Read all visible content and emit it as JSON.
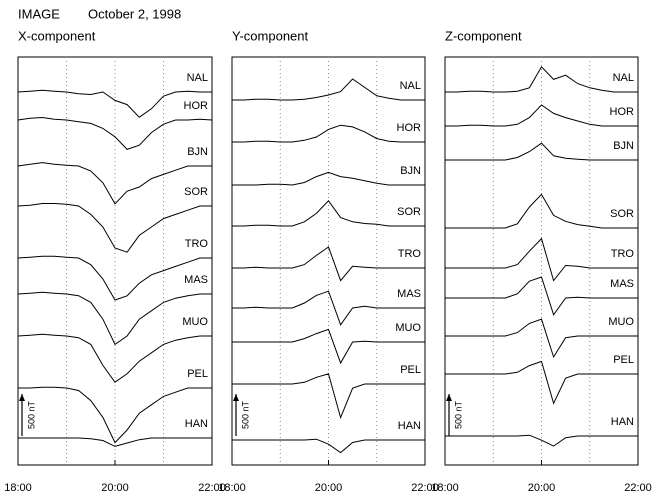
{
  "header": {
    "title": "IMAGE",
    "date": "October 2, 1998"
  },
  "chart_data": [
    {
      "type": "line",
      "title": "X-component",
      "x": [
        18,
        18.25,
        18.5,
        18.75,
        19,
        19.25,
        19.5,
        19.75,
        20,
        20.25,
        20.5,
        20.75,
        21,
        21.25,
        21.5,
        21.75,
        22
      ],
      "xlim": [
        18,
        22
      ],
      "xticks": [
        {
          "value": 18,
          "label": "18:00"
        },
        {
          "value": 20,
          "label": "20:00"
        },
        {
          "value": 22,
          "label": "22:00"
        }
      ],
      "xgrid": [
        19,
        20,
        21
      ],
      "scale_bar": {
        "value": 500,
        "label": "500 nT"
      },
      "series": [
        {
          "name": "NAL",
          "color": "#000000",
          "values": [
            0,
            10,
            20,
            10,
            0,
            -20,
            -30,
            0,
            -100,
            -150,
            -300,
            -200,
            -50,
            0,
            10,
            0,
            0
          ]
        },
        {
          "name": "HOR",
          "color": "#000000",
          "values": [
            0,
            20,
            30,
            10,
            0,
            -20,
            -40,
            -100,
            -200,
            -350,
            -300,
            -150,
            -50,
            0,
            0,
            10,
            0
          ]
        },
        {
          "name": "BJN",
          "color": "#000000",
          "values": [
            0,
            20,
            40,
            20,
            10,
            0,
            -60,
            -200,
            -450,
            -300,
            -250,
            -150,
            -100,
            -50,
            0,
            0,
            0
          ]
        },
        {
          "name": "SOR",
          "color": "#000000",
          "values": [
            0,
            10,
            30,
            30,
            20,
            0,
            -100,
            -250,
            -500,
            -550,
            -350,
            -250,
            -150,
            -100,
            -50,
            0,
            0
          ]
        },
        {
          "name": "TRO",
          "color": "#000000",
          "values": [
            0,
            10,
            20,
            20,
            10,
            0,
            -80,
            -250,
            -500,
            -450,
            -300,
            -200,
            -150,
            -100,
            -50,
            0,
            0
          ]
        },
        {
          "name": "MAS",
          "color": "#000000",
          "values": [
            0,
            10,
            20,
            10,
            0,
            -20,
            -100,
            -300,
            -600,
            -500,
            -300,
            -200,
            -100,
            -50,
            -20,
            0,
            0
          ]
        },
        {
          "name": "MUO",
          "color": "#000000",
          "values": [
            0,
            10,
            20,
            10,
            0,
            -20,
            -100,
            -350,
            -550,
            -450,
            -300,
            -200,
            -100,
            -50,
            -20,
            0,
            0
          ]
        },
        {
          "name": "PEL",
          "color": "#000000",
          "values": [
            0,
            0,
            10,
            10,
            0,
            -30,
            -150,
            -350,
            -650,
            -500,
            -300,
            -200,
            -100,
            -50,
            0,
            0,
            0
          ]
        },
        {
          "name": "HAN",
          "color": "#000000",
          "values": [
            0,
            0,
            0,
            0,
            0,
            0,
            -10,
            -30,
            -100,
            -60,
            -20,
            0,
            0,
            0,
            0,
            0,
            0
          ]
        }
      ]
    },
    {
      "type": "line",
      "title": "Y-component",
      "x": [
        18,
        18.25,
        18.5,
        18.75,
        19,
        19.25,
        19.5,
        19.75,
        20,
        20.25,
        20.5,
        20.75,
        21,
        21.25,
        21.5,
        21.75,
        22
      ],
      "xlim": [
        18,
        22
      ],
      "xticks": [
        {
          "value": 18,
          "label": "18:00"
        },
        {
          "value": 20,
          "label": "20:00"
        },
        {
          "value": 22,
          "label": "22:00"
        }
      ],
      "xgrid": [
        19,
        20,
        21
      ],
      "scale_bar": {
        "value": 500,
        "label": "500 nT"
      },
      "series": [
        {
          "name": "NAL",
          "color": "#000000",
          "values": [
            0,
            0,
            10,
            10,
            0,
            0,
            10,
            30,
            60,
            100,
            250,
            150,
            50,
            20,
            0,
            0,
            0
          ]
        },
        {
          "name": "HOR",
          "color": "#000000",
          "values": [
            0,
            0,
            10,
            10,
            0,
            0,
            20,
            60,
            150,
            200,
            180,
            120,
            40,
            10,
            0,
            0,
            0
          ]
        },
        {
          "name": "BJN",
          "color": "#000000",
          "values": [
            0,
            0,
            0,
            10,
            10,
            0,
            30,
            100,
            150,
            100,
            80,
            50,
            20,
            0,
            0,
            0,
            0
          ]
        },
        {
          "name": "SOR",
          "color": "#000000",
          "values": [
            0,
            0,
            10,
            10,
            0,
            0,
            50,
            150,
            300,
            100,
            50,
            30,
            20,
            0,
            0,
            0,
            0
          ]
        },
        {
          "name": "TRO",
          "color": "#000000",
          "values": [
            0,
            0,
            10,
            0,
            0,
            0,
            40,
            150,
            250,
            -150,
            20,
            10,
            0,
            0,
            0,
            0,
            0
          ]
        },
        {
          "name": "MAS",
          "color": "#000000",
          "values": [
            0,
            0,
            10,
            0,
            0,
            0,
            60,
            150,
            200,
            -200,
            0,
            20,
            0,
            0,
            0,
            0,
            0
          ]
        },
        {
          "name": "MUO",
          "color": "#000000",
          "values": [
            0,
            0,
            0,
            0,
            0,
            0,
            40,
            100,
            150,
            -250,
            0,
            10,
            0,
            0,
            0,
            0,
            0
          ]
        },
        {
          "name": "PEL",
          "color": "#000000",
          "values": [
            0,
            0,
            0,
            0,
            0,
            0,
            20,
            80,
            120,
            -400,
            -50,
            0,
            0,
            0,
            0,
            0,
            0
          ]
        },
        {
          "name": "HAN",
          "color": "#000000",
          "values": [
            0,
            0,
            0,
            0,
            0,
            0,
            0,
            10,
            -50,
            -150,
            -30,
            0,
            0,
            0,
            0,
            0,
            0
          ]
        }
      ]
    },
    {
      "type": "line",
      "title": "Z-component",
      "x": [
        18,
        18.25,
        18.5,
        18.75,
        19,
        19.25,
        19.5,
        19.75,
        20,
        20.25,
        20.5,
        20.75,
        21,
        21.25,
        21.5,
        21.75,
        22
      ],
      "xlim": [
        18,
        22
      ],
      "xticks": [
        {
          "value": 18,
          "label": "18:00"
        },
        {
          "value": 20,
          "label": "20:00"
        },
        {
          "value": 22,
          "label": "22:00"
        }
      ],
      "xgrid": [
        19,
        20,
        21
      ],
      "scale_bar": {
        "value": 500,
        "label": "500 nT"
      },
      "series": [
        {
          "name": "NAL",
          "color": "#000000",
          "values": [
            0,
            0,
            10,
            10,
            0,
            0,
            10,
            50,
            300,
            150,
            200,
            100,
            50,
            20,
            0,
            0,
            0
          ]
        },
        {
          "name": "HOR",
          "color": "#000000",
          "values": [
            0,
            0,
            10,
            10,
            0,
            0,
            20,
            100,
            250,
            150,
            100,
            60,
            20,
            0,
            0,
            0,
            0
          ]
        },
        {
          "name": "BJN",
          "color": "#000000",
          "values": [
            0,
            0,
            0,
            0,
            0,
            0,
            30,
            100,
            200,
            50,
            20,
            10,
            0,
            0,
            0,
            0,
            0
          ]
        },
        {
          "name": "SOR",
          "color": "#000000",
          "values": [
            0,
            0,
            0,
            0,
            0,
            0,
            50,
            250,
            400,
            150,
            80,
            40,
            20,
            0,
            0,
            0,
            0
          ]
        },
        {
          "name": "TRO",
          "color": "#000000",
          "values": [
            0,
            0,
            0,
            0,
            0,
            0,
            40,
            200,
            350,
            -150,
            30,
            20,
            0,
            0,
            0,
            0,
            0
          ]
        },
        {
          "name": "MAS",
          "color": "#000000",
          "values": [
            0,
            0,
            0,
            0,
            0,
            0,
            50,
            200,
            250,
            -200,
            0,
            10,
            0,
            0,
            0,
            0,
            0
          ]
        },
        {
          "name": "MUO",
          "color": "#000000",
          "values": [
            0,
            0,
            0,
            0,
            0,
            0,
            40,
            150,
            200,
            -250,
            -20,
            0,
            0,
            0,
            0,
            0,
            0
          ]
        },
        {
          "name": "PEL",
          "color": "#000000",
          "values": [
            0,
            0,
            0,
            0,
            0,
            0,
            20,
            100,
            150,
            -350,
            -50,
            0,
            0,
            0,
            0,
            0,
            0
          ]
        },
        {
          "name": "HAN",
          "color": "#000000",
          "values": [
            0,
            0,
            0,
            0,
            0,
            0,
            0,
            10,
            -50,
            -120,
            -20,
            0,
            0,
            0,
            0,
            0,
            0
          ]
        }
      ]
    }
  ]
}
